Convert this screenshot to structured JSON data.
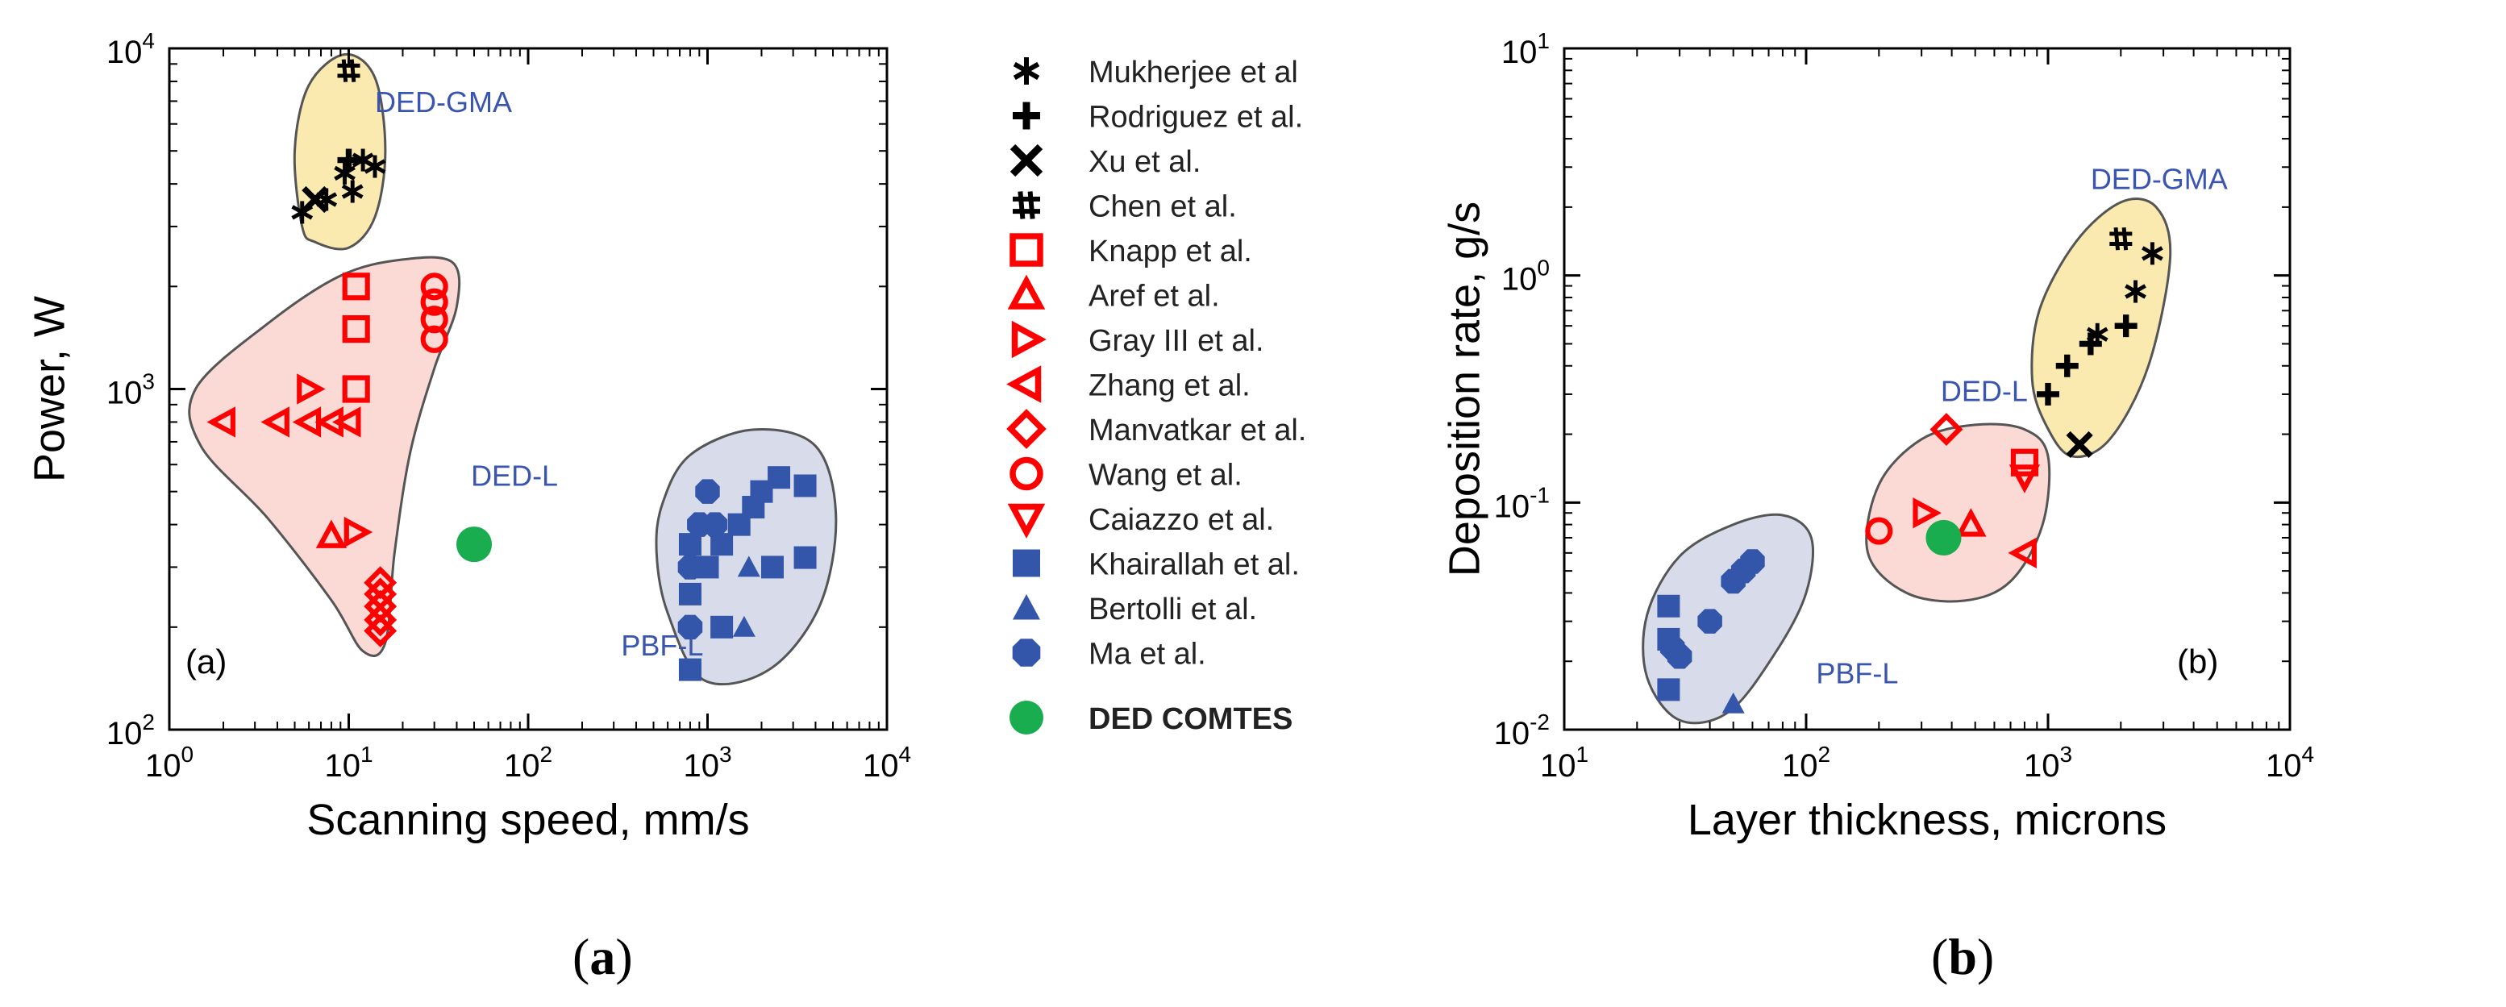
{
  "chart_data": [
    {
      "id": "a",
      "type": "scatter",
      "panel_label": "(a)",
      "caption_open": "(",
      "caption_letter": "a",
      "caption_close": ")",
      "xlabel": "Scanning speed, mm/s",
      "ylabel": "Power, W",
      "xscale": "log",
      "yscale": "log",
      "xlim": [
        1,
        10000
      ],
      "ylim": [
        100,
        10000
      ],
      "xticks": [
        {
          "value": 1,
          "label": "10",
          "exp": "0"
        },
        {
          "value": 10,
          "label": "10",
          "exp": "1"
        },
        {
          "value": 100,
          "label": "10",
          "exp": "2"
        },
        {
          "value": 1000,
          "label": "10",
          "exp": "3"
        },
        {
          "value": 10000,
          "label": "10",
          "exp": "4"
        }
      ],
      "yticks": [
        {
          "value": 100,
          "label": "10",
          "exp": "2"
        },
        {
          "value": 1000,
          "label": "10",
          "exp": "3"
        },
        {
          "value": 10000,
          "label": "10",
          "exp": "4"
        }
      ],
      "regions": [
        {
          "label": "DED-GMA",
          "fill": "#fbeab0",
          "label_at": [
            14,
            6500
          ],
          "outline": [
            [
              5.5,
              3000
            ],
            [
              5,
              5000
            ],
            [
              6,
              7800
            ],
            [
              9.5,
              9600
            ],
            [
              14,
              8200
            ],
            [
              16,
              5000
            ],
            [
              14,
              3200
            ],
            [
              10,
              2600
            ],
            [
              6.5,
              2700
            ]
          ]
        },
        {
          "label": "DED-L",
          "fill": "#fbdad6",
          "label_at": [
            48,
            520
          ],
          "outline": [
            [
              1.4,
              1000
            ],
            [
              1.5,
              680
            ],
            [
              3.5,
              420
            ],
            [
              8,
              240
            ],
            [
              12,
              170
            ],
            [
              16,
              180
            ],
            [
              18,
              330
            ],
            [
              22,
              650
            ],
            [
              30,
              1150
            ],
            [
              40,
              1750
            ],
            [
              38,
              2350
            ],
            [
              20,
              2400
            ],
            [
              9,
              2150
            ],
            [
              3.5,
              1550
            ]
          ]
        },
        {
          "label": "PBF-L",
          "fill": "#d7dbea",
          "label_at": [
            330,
            165
          ],
          "outline": [
            [
              520,
              330
            ],
            [
              600,
              220
            ],
            [
              950,
              140
            ],
            [
              2200,
              150
            ],
            [
              4200,
              230
            ],
            [
              5200,
              420
            ],
            [
              4000,
              680
            ],
            [
              1800,
              760
            ],
            [
              800,
              640
            ],
            [
              560,
              460
            ]
          ]
        }
      ],
      "series": [
        {
          "name": "Mukherjee et al",
          "marker": "asterisk",
          "color": "#000000",
          "points": [
            [
              5.5,
              3300
            ],
            [
              7.5,
              3600
            ],
            [
              9.5,
              4300
            ],
            [
              12,
              4700
            ],
            [
              10.5,
              3800
            ],
            [
              14,
              4500
            ]
          ]
        },
        {
          "name": "Rodriguez et al.",
          "marker": "plus",
          "color": "#000000",
          "points": [
            [
              10,
              4700
            ]
          ]
        },
        {
          "name": "Xu et al.",
          "marker": "x",
          "color": "#000000",
          "points": [
            [
              6.5,
              3600
            ]
          ]
        },
        {
          "name": "Chen et al.",
          "marker": "hash",
          "color": "#000000",
          "points": [
            [
              10,
              8600
            ]
          ]
        },
        {
          "name": "Knapp et al.",
          "marker": "square",
          "color": "#ff0000",
          "points": [
            [
              11,
              2000
            ],
            [
              11,
              1500
            ],
            [
              11,
              1000
            ]
          ]
        },
        {
          "name": "Aref et al.",
          "marker": "triangle-up",
          "color": "#ff0000",
          "points": [
            [
              8,
              370
            ]
          ]
        },
        {
          "name": "Gray III et al.",
          "marker": "triangle-right",
          "color": "#ff0000",
          "points": [
            [
              6,
              1000
            ],
            [
              11,
              380
            ]
          ]
        },
        {
          "name": "Zhang et al.",
          "marker": "triangle-left",
          "color": "#ff0000",
          "points": [
            [
              2,
              800
            ],
            [
              4,
              800
            ],
            [
              6,
              800
            ],
            [
              8,
              800
            ],
            [
              10,
              800
            ]
          ]
        },
        {
          "name": "Manvatkar et al.",
          "marker": "diamond",
          "color": "#ff0000",
          "points": [
            [
              15,
              270
            ],
            [
              15,
              250
            ],
            [
              15,
              230
            ],
            [
              15,
              210
            ],
            [
              15,
              195
            ]
          ]
        },
        {
          "name": "Wang et al.",
          "marker": "circle",
          "color": "#ff0000",
          "points": [
            [
              30,
              2000
            ],
            [
              30,
              1800
            ],
            [
              30,
              1600
            ],
            [
              30,
              1400
            ]
          ]
        },
        {
          "name": "Caiazzo et al.",
          "marker": "triangle-down",
          "color": "#ff0000",
          "points": []
        },
        {
          "name": "Khairallah et al.",
          "marker": "square-filled",
          "color": "#3355aa",
          "points": [
            [
              800,
              150
            ],
            [
              800,
              250
            ],
            [
              1000,
              300
            ],
            [
              1200,
              350
            ],
            [
              1500,
              400
            ],
            [
              1800,
              450
            ],
            [
              2000,
              500
            ],
            [
              2500,
              550
            ],
            [
              3500,
              520
            ],
            [
              3500,
              320
            ],
            [
              1200,
              200
            ],
            [
              800,
              350
            ],
            [
              2300,
              300
            ]
          ]
        },
        {
          "name": "Bertolli et al.",
          "marker": "triangle-filled",
          "color": "#3355aa",
          "points": [
            [
              1600,
              200
            ],
            [
              1700,
              300
            ]
          ]
        },
        {
          "name": "Ma et al.",
          "marker": "octagon-filled",
          "color": "#3355aa",
          "points": [
            [
              800,
              200
            ],
            [
              800,
              300
            ],
            [
              900,
              400
            ],
            [
              1000,
              500
            ],
            [
              1100,
              400
            ]
          ]
        },
        {
          "name": "DED COMTES",
          "marker": "dot",
          "color": "#1aad4f",
          "points": [
            [
              50,
              350
            ]
          ]
        }
      ]
    },
    {
      "id": "b",
      "type": "scatter",
      "panel_label": "(b)",
      "caption_open": "(",
      "caption_letter": "b",
      "caption_close": ")",
      "xlabel": "Layer thickness, microns",
      "ylabel": "Deposition rate, g/s",
      "xscale": "log",
      "yscale": "log",
      "xlim": [
        10,
        10000
      ],
      "ylim": [
        0.01,
        10
      ],
      "xticks": [
        {
          "value": 10,
          "label": "10",
          "exp": "1"
        },
        {
          "value": 100,
          "label": "10",
          "exp": "2"
        },
        {
          "value": 1000,
          "label": "10",
          "exp": "3"
        },
        {
          "value": 10000,
          "label": "10",
          "exp": "4"
        }
      ],
      "yticks": [
        {
          "value": 0.01,
          "label": "10",
          "exp": "-2"
        },
        {
          "value": 0.1,
          "label": "10",
          "exp": "-1"
        },
        {
          "value": 1,
          "label": "10",
          "exp": "0"
        },
        {
          "value": 10,
          "label": "10",
          "exp": "1"
        }
      ],
      "regions": [
        {
          "label": "DED-GMA",
          "fill": "#fbeab0",
          "label_at": [
            1500,
            2.4
          ],
          "outline": [
            [
              980,
              0.22
            ],
            [
              860,
              0.35
            ],
            [
              920,
              0.7
            ],
            [
              1300,
              1.4
            ],
            [
              2000,
              2.1
            ],
            [
              2800,
              2.0
            ],
            [
              3200,
              1.2
            ],
            [
              2600,
              0.4
            ],
            [
              1800,
              0.19
            ],
            [
              1250,
              0.16
            ]
          ]
        },
        {
          "label": "DED-L",
          "fill": "#fbdad6",
          "label_at": [
            360,
            0.28
          ],
          "outline": [
            [
              180,
              0.06
            ],
            [
              200,
              0.12
            ],
            [
              300,
              0.19
            ],
            [
              500,
              0.22
            ],
            [
              800,
              0.21
            ],
            [
              1000,
              0.16
            ],
            [
              950,
              0.08
            ],
            [
              700,
              0.045
            ],
            [
              450,
              0.037
            ],
            [
              260,
              0.04
            ]
          ]
        },
        {
          "label": "PBF-L",
          "fill": "#d7dbea",
          "label_at": [
            110,
            0.016
          ],
          "outline": [
            [
              22,
              0.017
            ],
            [
              22,
              0.032
            ],
            [
              30,
              0.058
            ],
            [
              50,
              0.08
            ],
            [
              80,
              0.088
            ],
            [
              105,
              0.07
            ],
            [
              100,
              0.04
            ],
            [
              75,
              0.022
            ],
            [
              48,
              0.012
            ],
            [
              30,
              0.011
            ]
          ]
        }
      ],
      "series": [
        {
          "name": "Mukherjee et al",
          "marker": "asterisk",
          "color": "#000000",
          "points": [
            [
              1600,
              0.55
            ],
            [
              2300,
              0.85
            ],
            [
              2700,
              1.25
            ]
          ]
        },
        {
          "name": "Rodriguez et al.",
          "marker": "plus",
          "color": "#000000",
          "points": [
            [
              1000,
              0.3
            ],
            [
              1200,
              0.4
            ],
            [
              1500,
              0.5
            ],
            [
              2100,
              0.6
            ]
          ]
        },
        {
          "name": "Xu et al.",
          "marker": "x",
          "color": "#000000",
          "points": [
            [
              1350,
              0.18
            ]
          ]
        },
        {
          "name": "Chen et al.",
          "marker": "hash",
          "color": "#000000",
          "points": [
            [
              2000,
              1.45
            ]
          ]
        },
        {
          "name": "Knapp et al.",
          "marker": "square",
          "color": "#ff0000",
          "points": [
            [
              800,
              0.15
            ]
          ]
        },
        {
          "name": "Aref et al.",
          "marker": "triangle-up",
          "color": "#ff0000",
          "points": [
            [
              480,
              0.08
            ]
          ]
        },
        {
          "name": "Gray III et al.",
          "marker": "triangle-right",
          "color": "#ff0000",
          "points": [
            [
              310,
              0.09
            ]
          ]
        },
        {
          "name": "Zhang et al.",
          "marker": "triangle-left",
          "color": "#ff0000",
          "points": [
            [
              800,
              0.06
            ]
          ]
        },
        {
          "name": "Manvatkar et al.",
          "marker": "diamond",
          "color": "#ff0000",
          "points": [
            [
              380,
              0.21
            ]
          ]
        },
        {
          "name": "Wang et al.",
          "marker": "circle",
          "color": "#ff0000",
          "points": [
            [
              200,
              0.075
            ]
          ]
        },
        {
          "name": "Caiazzo et al.",
          "marker": "triangle-down",
          "color": "#ff0000",
          "points": [
            [
              800,
              0.13
            ]
          ]
        },
        {
          "name": "Khairallah et al.",
          "marker": "square-filled",
          "color": "#3355aa",
          "points": [
            [
              27,
              0.035
            ],
            [
              27,
              0.025
            ],
            [
              27,
              0.015
            ]
          ]
        },
        {
          "name": "Bertolli et al.",
          "marker": "triangle-filled",
          "color": "#3355aa",
          "points": [
            [
              50,
              0.013
            ]
          ]
        },
        {
          "name": "Ma et al.",
          "marker": "octagon-filled",
          "color": "#3355aa",
          "points": [
            [
              28,
              0.023
            ],
            [
              30,
              0.021
            ],
            [
              40,
              0.03
            ],
            [
              50,
              0.045
            ],
            [
              55,
              0.05
            ],
            [
              60,
              0.055
            ]
          ]
        },
        {
          "name": "DED COMTES",
          "marker": "dot",
          "color": "#1aad4f",
          "points": [
            [
              370,
              0.07
            ]
          ]
        }
      ]
    }
  ],
  "legend": [
    {
      "label": "Mukherjee et al",
      "marker": "asterisk",
      "color": "#000000"
    },
    {
      "label": "Rodriguez et al.",
      "marker": "plus",
      "color": "#000000"
    },
    {
      "label": "Xu et al.",
      "marker": "x",
      "color": "#000000"
    },
    {
      "label": "Chen et al.",
      "marker": "hash",
      "color": "#000000"
    },
    {
      "label": "Knapp et al.",
      "marker": "square",
      "color": "#ff0000"
    },
    {
      "label": "Aref et al.",
      "marker": "triangle-up",
      "color": "#ff0000"
    },
    {
      "label": "Gray III et al.",
      "marker": "triangle-right",
      "color": "#ff0000"
    },
    {
      "label": "Zhang et al.",
      "marker": "triangle-left",
      "color": "#ff0000"
    },
    {
      "label": "Manvatkar et al.",
      "marker": "diamond",
      "color": "#ff0000"
    },
    {
      "label": "Wang et al.",
      "marker": "circle",
      "color": "#ff0000"
    },
    {
      "label": "Caiazzo et al.",
      "marker": "triangle-down",
      "color": "#ff0000"
    },
    {
      "label": "Khairallah et al.",
      "marker": "square-filled",
      "color": "#3355aa"
    },
    {
      "label": "Bertolli et al.",
      "marker": "triangle-filled",
      "color": "#3355aa"
    },
    {
      "label": "Ma et al.",
      "marker": "octagon-filled",
      "color": "#3355aa"
    },
    {
      "label": "DED COMTES",
      "marker": "dot",
      "color": "#1aad4f",
      "bold": true
    }
  ],
  "colors": {
    "region_label": "#3a55b0",
    "outline": "#555555",
    "axis": "#000000"
  }
}
